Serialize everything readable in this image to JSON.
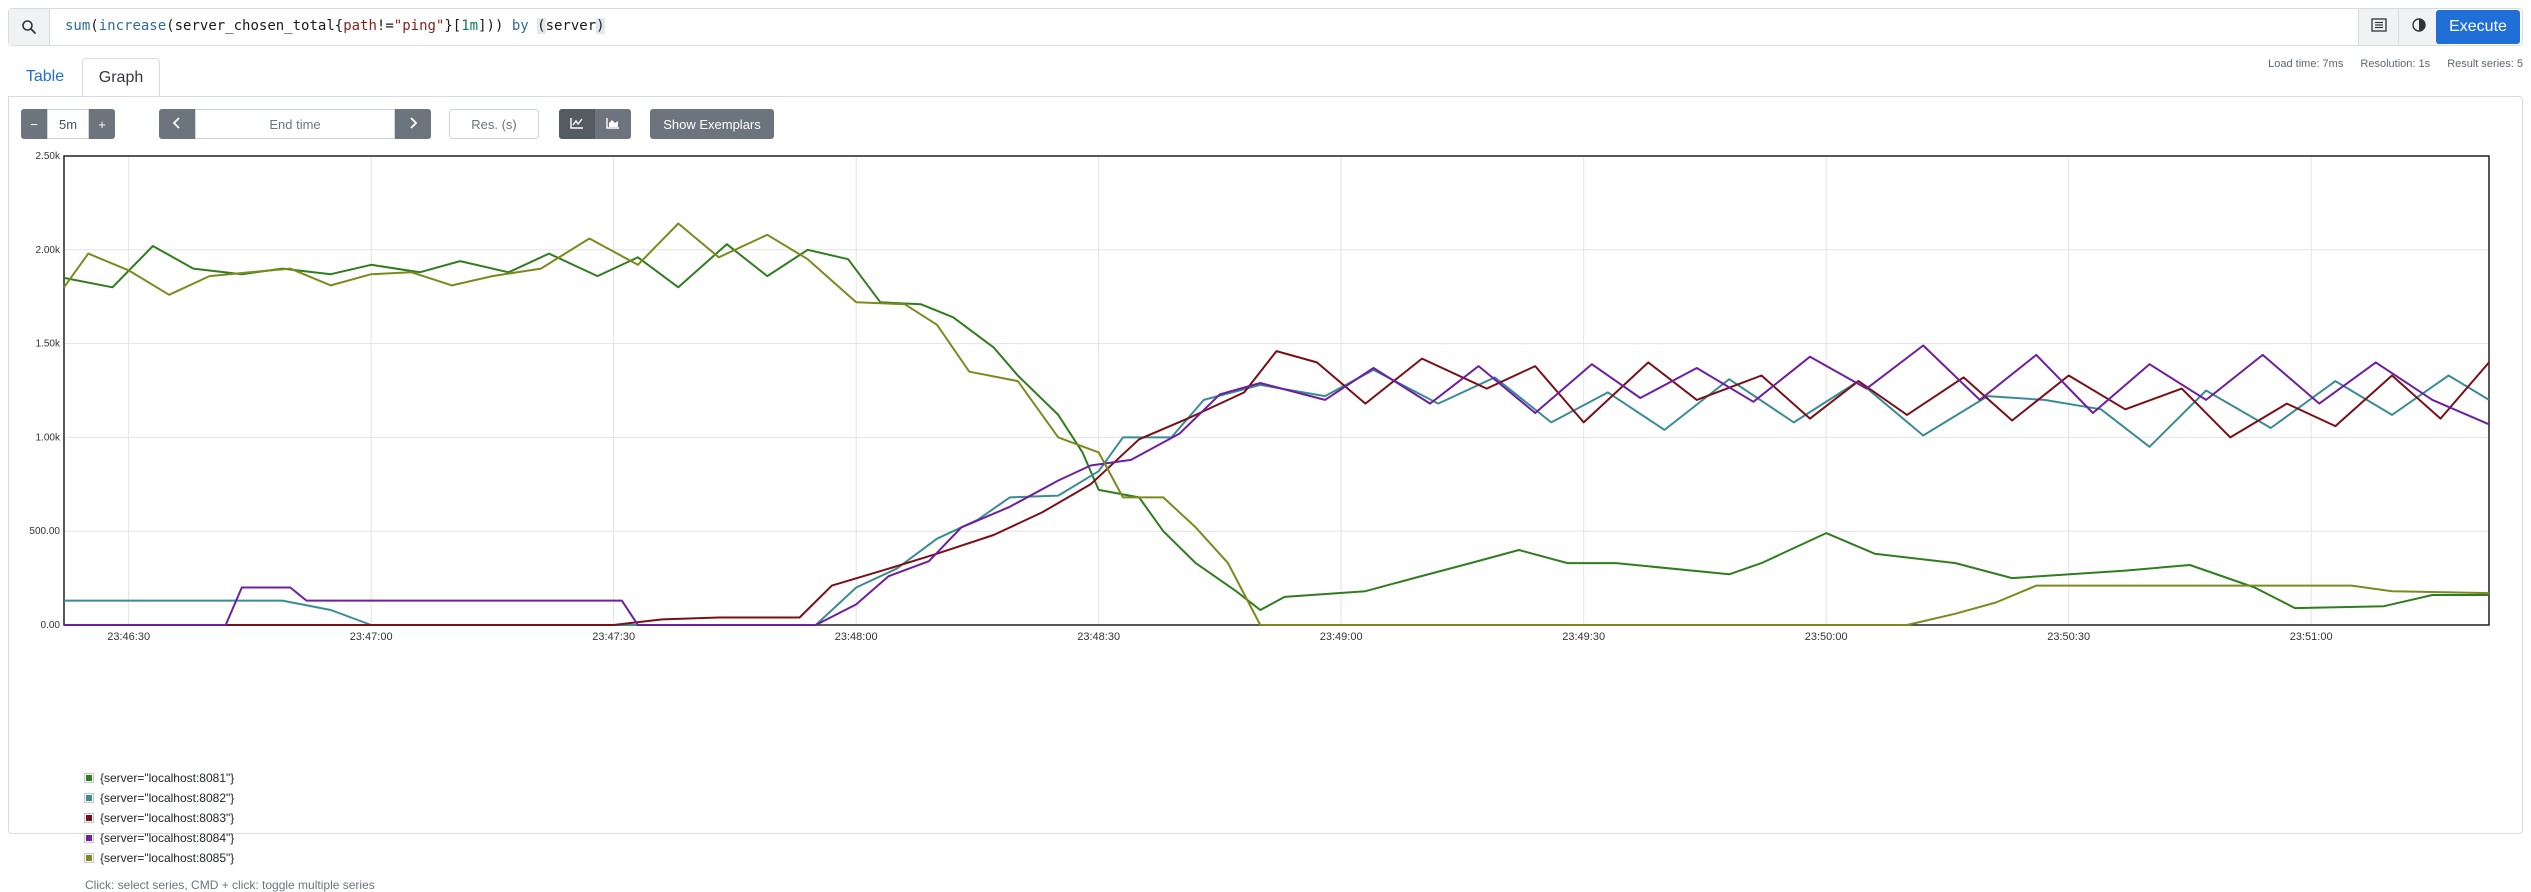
{
  "query": {
    "tokens": [
      {
        "t": "sum",
        "c": "fn"
      },
      {
        "t": "(",
        "c": "id"
      },
      {
        "t": "increase",
        "c": "fn"
      },
      {
        "t": "(",
        "c": "id"
      },
      {
        "t": "server_chosen_total",
        "c": "id"
      },
      {
        "t": "{",
        "c": "id"
      },
      {
        "t": "path",
        "c": "str"
      },
      {
        "t": "!=",
        "c": "id"
      },
      {
        "t": "\"ping\"",
        "c": "str"
      },
      {
        "t": "}",
        "c": "id"
      },
      {
        "t": "[",
        "c": "id"
      },
      {
        "t": "1m",
        "c": "num"
      },
      {
        "t": "]",
        "c": "id"
      },
      {
        "t": "))",
        "c": "id"
      },
      {
        "t": " ",
        "c": "id"
      },
      {
        "t": "by",
        "c": "kw"
      },
      {
        "t": " ",
        "c": "id"
      },
      {
        "t": "(",
        "c": "hl"
      },
      {
        "t": "server",
        "c": "id"
      },
      {
        "t": ")",
        "c": "hl"
      }
    ],
    "execute_label": "Execute"
  },
  "tabs": {
    "table": "Table",
    "graph": "Graph"
  },
  "stats": {
    "load_time": "Load time: 7ms",
    "resolution": "Resolution: 1s",
    "result_series": "Result series: 5"
  },
  "controls": {
    "minus": "−",
    "range": "5m",
    "plus": "+",
    "prev": "‹",
    "end_time_placeholder": "End time",
    "next": "›",
    "res_placeholder": "Res. (s)",
    "show_exemplars": "Show Exemplars"
  },
  "chart_data": {
    "type": "line",
    "ylim": [
      0,
      2500
    ],
    "ytick_values": [
      0,
      500,
      1000,
      1500,
      2000,
      2500
    ],
    "ytick_labels": [
      "0.00",
      "500.00",
      "1.00k",
      "1.50k",
      "2.00k",
      "2.50k"
    ],
    "xtick_labels": [
      "23:46:30",
      "23:47:00",
      "23:47:30",
      "23:48:00",
      "23:48:30",
      "23:49:00",
      "23:49:30",
      "23:50:00",
      "23:50:30",
      "23:51:00"
    ],
    "x_range": [
      "23:46:22",
      "23:51:22"
    ],
    "grid": true,
    "series": [
      {
        "name": "{server=\"localhost:8081\"}",
        "color": "#2f7d1f",
        "points": [
          [
            "23:46:22",
            1850
          ],
          [
            "23:46:28",
            1800
          ],
          [
            "23:46:33",
            2020
          ],
          [
            "23:46:38",
            1900
          ],
          [
            "23:46:44",
            1870
          ],
          [
            "23:46:49",
            1900
          ],
          [
            "23:46:55",
            1870
          ],
          [
            "23:47:00",
            1920
          ],
          [
            "23:47:06",
            1880
          ],
          [
            "23:47:11",
            1940
          ],
          [
            "23:47:17",
            1880
          ],
          [
            "23:47:22",
            1980
          ],
          [
            "23:47:28",
            1860
          ],
          [
            "23:47:33",
            1960
          ],
          [
            "23:47:38",
            1800
          ],
          [
            "23:47:44",
            2030
          ],
          [
            "23:47:49",
            1860
          ],
          [
            "23:47:54",
            2000
          ],
          [
            "23:47:59",
            1950
          ],
          [
            "23:48:03",
            1720
          ],
          [
            "23:48:08",
            1710
          ],
          [
            "23:48:12",
            1640
          ],
          [
            "23:48:17",
            1480
          ],
          [
            "23:48:20",
            1330
          ],
          [
            "23:48:25",
            1120
          ],
          [
            "23:48:28",
            920
          ],
          [
            "23:48:30",
            720
          ],
          [
            "23:48:35",
            680
          ],
          [
            "23:48:38",
            500
          ],
          [
            "23:48:42",
            330
          ],
          [
            "23:48:47",
            180
          ],
          [
            "23:48:50",
            80
          ],
          [
            "23:48:53",
            150
          ],
          [
            "23:49:03",
            180
          ],
          [
            "23:49:09",
            250
          ],
          [
            "23:49:16",
            330
          ],
          [
            "23:49:22",
            400
          ],
          [
            "23:49:28",
            330
          ],
          [
            "23:49:34",
            330
          ],
          [
            "23:49:48",
            270
          ],
          [
            "23:49:52",
            330
          ],
          [
            "23:50:00",
            490
          ],
          [
            "23:50:06",
            380
          ],
          [
            "23:50:16",
            330
          ],
          [
            "23:50:23",
            250
          ],
          [
            "23:50:37",
            290
          ],
          [
            "23:50:45",
            320
          ],
          [
            "23:50:53",
            200
          ],
          [
            "23:50:58",
            90
          ],
          [
            "23:51:09",
            100
          ],
          [
            "23:51:15",
            160
          ],
          [
            "23:51:22",
            160
          ]
        ]
      },
      {
        "name": "{server=\"localhost:8082\"}",
        "color": "#3a8c94",
        "points": [
          [
            "23:46:22",
            130
          ],
          [
            "23:46:49",
            130
          ],
          [
            "23:46:55",
            80
          ],
          [
            "23:47:00",
            0
          ],
          [
            "23:47:55",
            0
          ],
          [
            "23:48:00",
            200
          ],
          [
            "23:48:05",
            300
          ],
          [
            "23:48:10",
            460
          ],
          [
            "23:48:15",
            560
          ],
          [
            "23:48:19",
            680
          ],
          [
            "23:48:25",
            690
          ],
          [
            "23:48:30",
            820
          ],
          [
            "23:48:33",
            1000
          ],
          [
            "23:48:39",
            1000
          ],
          [
            "23:48:43",
            1200
          ],
          [
            "23:48:50",
            1280
          ],
          [
            "23:48:58",
            1220
          ],
          [
            "23:49:04",
            1360
          ],
          [
            "23:49:12",
            1180
          ],
          [
            "23:49:19",
            1320
          ],
          [
            "23:49:26",
            1080
          ],
          [
            "23:49:33",
            1240
          ],
          [
            "23:49:40",
            1040
          ],
          [
            "23:49:48",
            1310
          ],
          [
            "23:49:56",
            1080
          ],
          [
            "23:50:04",
            1300
          ],
          [
            "23:50:12",
            1010
          ],
          [
            "23:50:20",
            1220
          ],
          [
            "23:50:27",
            1200
          ],
          [
            "23:50:34",
            1150
          ],
          [
            "23:50:40",
            950
          ],
          [
            "23:50:47",
            1250
          ],
          [
            "23:50:55",
            1050
          ],
          [
            "23:51:03",
            1300
          ],
          [
            "23:51:10",
            1120
          ],
          [
            "23:51:17",
            1330
          ],
          [
            "23:51:22",
            1200
          ]
        ]
      },
      {
        "name": "{server=\"localhost:8083\"}",
        "color": "#7b0f18",
        "points": [
          [
            "23:46:22",
            0
          ],
          [
            "23:47:30",
            0
          ],
          [
            "23:47:36",
            30
          ],
          [
            "23:47:43",
            40
          ],
          [
            "23:47:53",
            40
          ],
          [
            "23:47:57",
            210
          ],
          [
            "23:48:04",
            300
          ],
          [
            "23:48:10",
            380
          ],
          [
            "23:48:17",
            480
          ],
          [
            "23:48:23",
            600
          ],
          [
            "23:48:29",
            750
          ],
          [
            "23:48:35",
            990
          ],
          [
            "23:48:41",
            1100
          ],
          [
            "23:48:48",
            1240
          ],
          [
            "23:48:52",
            1460
          ],
          [
            "23:48:57",
            1400
          ],
          [
            "23:49:03",
            1180
          ],
          [
            "23:49:10",
            1420
          ],
          [
            "23:49:18",
            1260
          ],
          [
            "23:49:24",
            1380
          ],
          [
            "23:49:30",
            1080
          ],
          [
            "23:49:38",
            1400
          ],
          [
            "23:49:44",
            1200
          ],
          [
            "23:49:52",
            1330
          ],
          [
            "23:49:58",
            1100
          ],
          [
            "23:50:04",
            1300
          ],
          [
            "23:50:10",
            1120
          ],
          [
            "23:50:17",
            1320
          ],
          [
            "23:50:23",
            1090
          ],
          [
            "23:50:30",
            1330
          ],
          [
            "23:50:37",
            1150
          ],
          [
            "23:50:44",
            1260
          ],
          [
            "23:50:50",
            1000
          ],
          [
            "23:50:57",
            1180
          ],
          [
            "23:51:03",
            1060
          ],
          [
            "23:51:10",
            1330
          ],
          [
            "23:51:16",
            1100
          ],
          [
            "23:51:22",
            1400
          ]
        ]
      },
      {
        "name": "{server=\"localhost:8084\"}",
        "color": "#6f1ea0",
        "points": [
          [
            "23:46:22",
            0
          ],
          [
            "23:46:42",
            0
          ],
          [
            "23:46:44",
            200
          ],
          [
            "23:46:50",
            200
          ],
          [
            "23:46:52",
            130
          ],
          [
            "23:47:31",
            130
          ],
          [
            "23:47:33",
            0
          ],
          [
            "23:47:55",
            0
          ],
          [
            "23:48:00",
            110
          ],
          [
            "23:48:04",
            260
          ],
          [
            "23:48:09",
            340
          ],
          [
            "23:48:13",
            520
          ],
          [
            "23:48:19",
            630
          ],
          [
            "23:48:25",
            770
          ],
          [
            "23:48:29",
            850
          ],
          [
            "23:48:34",
            880
          ],
          [
            "23:48:40",
            1020
          ],
          [
            "23:48:45",
            1230
          ],
          [
            "23:48:50",
            1290
          ],
          [
            "23:48:58",
            1200
          ],
          [
            "23:49:04",
            1370
          ],
          [
            "23:49:11",
            1180
          ],
          [
            "23:49:17",
            1380
          ],
          [
            "23:49:24",
            1130
          ],
          [
            "23:49:31",
            1390
          ],
          [
            "23:49:37",
            1210
          ],
          [
            "23:49:44",
            1370
          ],
          [
            "23:49:51",
            1190
          ],
          [
            "23:49:58",
            1430
          ],
          [
            "23:50:05",
            1260
          ],
          [
            "23:50:12",
            1490
          ],
          [
            "23:50:19",
            1200
          ],
          [
            "23:50:26",
            1440
          ],
          [
            "23:50:33",
            1130
          ],
          [
            "23:50:40",
            1390
          ],
          [
            "23:50:47",
            1200
          ],
          [
            "23:50:54",
            1440
          ],
          [
            "23:51:01",
            1180
          ],
          [
            "23:51:08",
            1400
          ],
          [
            "23:51:15",
            1200
          ],
          [
            "23:51:22",
            1070
          ]
        ]
      },
      {
        "name": "{server=\"localhost:8085\"}",
        "color": "#7c8a1d",
        "points": [
          [
            "23:46:22",
            1800
          ],
          [
            "23:46:25",
            1980
          ],
          [
            "23:46:30",
            1890
          ],
          [
            "23:46:35",
            1760
          ],
          [
            "23:46:40",
            1860
          ],
          [
            "23:46:45",
            1880
          ],
          [
            "23:46:50",
            1900
          ],
          [
            "23:46:55",
            1810
          ],
          [
            "23:47:00",
            1870
          ],
          [
            "23:47:05",
            1880
          ],
          [
            "23:47:10",
            1810
          ],
          [
            "23:47:15",
            1860
          ],
          [
            "23:47:21",
            1900
          ],
          [
            "23:47:27",
            2060
          ],
          [
            "23:47:33",
            1920
          ],
          [
            "23:47:38",
            2140
          ],
          [
            "23:47:43",
            1960
          ],
          [
            "23:47:49",
            2080
          ],
          [
            "23:47:54",
            1950
          ],
          [
            "23:48:00",
            1720
          ],
          [
            "23:48:06",
            1710
          ],
          [
            "23:48:10",
            1600
          ],
          [
            "23:48:14",
            1350
          ],
          [
            "23:48:20",
            1300
          ],
          [
            "23:48:25",
            1000
          ],
          [
            "23:48:30",
            920
          ],
          [
            "23:48:33",
            680
          ],
          [
            "23:48:38",
            680
          ],
          [
            "23:48:42",
            520
          ],
          [
            "23:48:46",
            330
          ],
          [
            "23:48:50",
            0
          ],
          [
            "23:50:10",
            0
          ],
          [
            "23:50:16",
            60
          ],
          [
            "23:50:21",
            120
          ],
          [
            "23:50:26",
            210
          ],
          [
            "23:51:05",
            210
          ],
          [
            "23:51:10",
            180
          ],
          [
            "23:51:22",
            170
          ]
        ]
      }
    ]
  },
  "legend_hint": "Click: select series, CMD + click: toggle multiple series"
}
